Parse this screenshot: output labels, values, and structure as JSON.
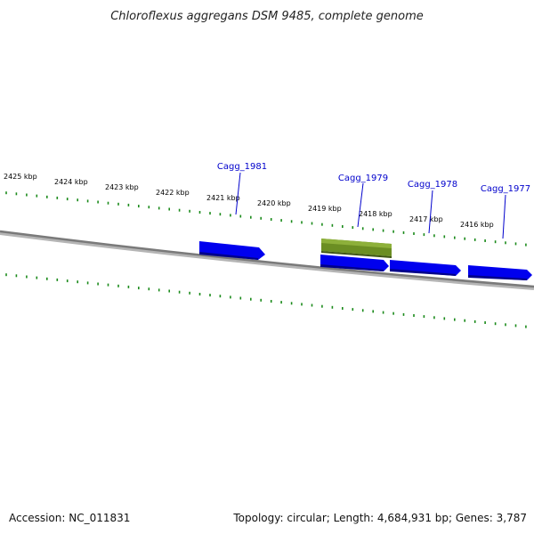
{
  "title": "Chloroflexus aggregans DSM 9485, complete genome",
  "footer": {
    "accession": "Accession: NC_011831",
    "stats": "Topology: circular; Length: 4,684,931 bp; Genes: 3,787"
  },
  "colors": {
    "backbone": "#7a7a7a",
    "ticks": "#1a8a1a",
    "cds_forward": "#0000ee",
    "cds_highlight": "#6b8e23",
    "label": "#0000cc"
  },
  "scale": {
    "unit": "kbp",
    "labels": [
      "2425 kbp",
      "2424 kbp",
      "2423 kbp",
      "2422 kbp",
      "2421 kbp",
      "2420 kbp",
      "2419 kbp",
      "2418 kbp",
      "2417 kbp",
      "2416 kbp"
    ]
  },
  "genes": [
    {
      "name": "Cagg_1981",
      "type": "CDS",
      "strand": "+"
    },
    {
      "name": "Cagg_1979",
      "type": "CDS",
      "strand": "+",
      "highlighted": true
    },
    {
      "name": "Cagg_1978",
      "type": "CDS",
      "strand": "+"
    },
    {
      "name": "Cagg_1977",
      "type": "CDS",
      "strand": "+"
    }
  ]
}
